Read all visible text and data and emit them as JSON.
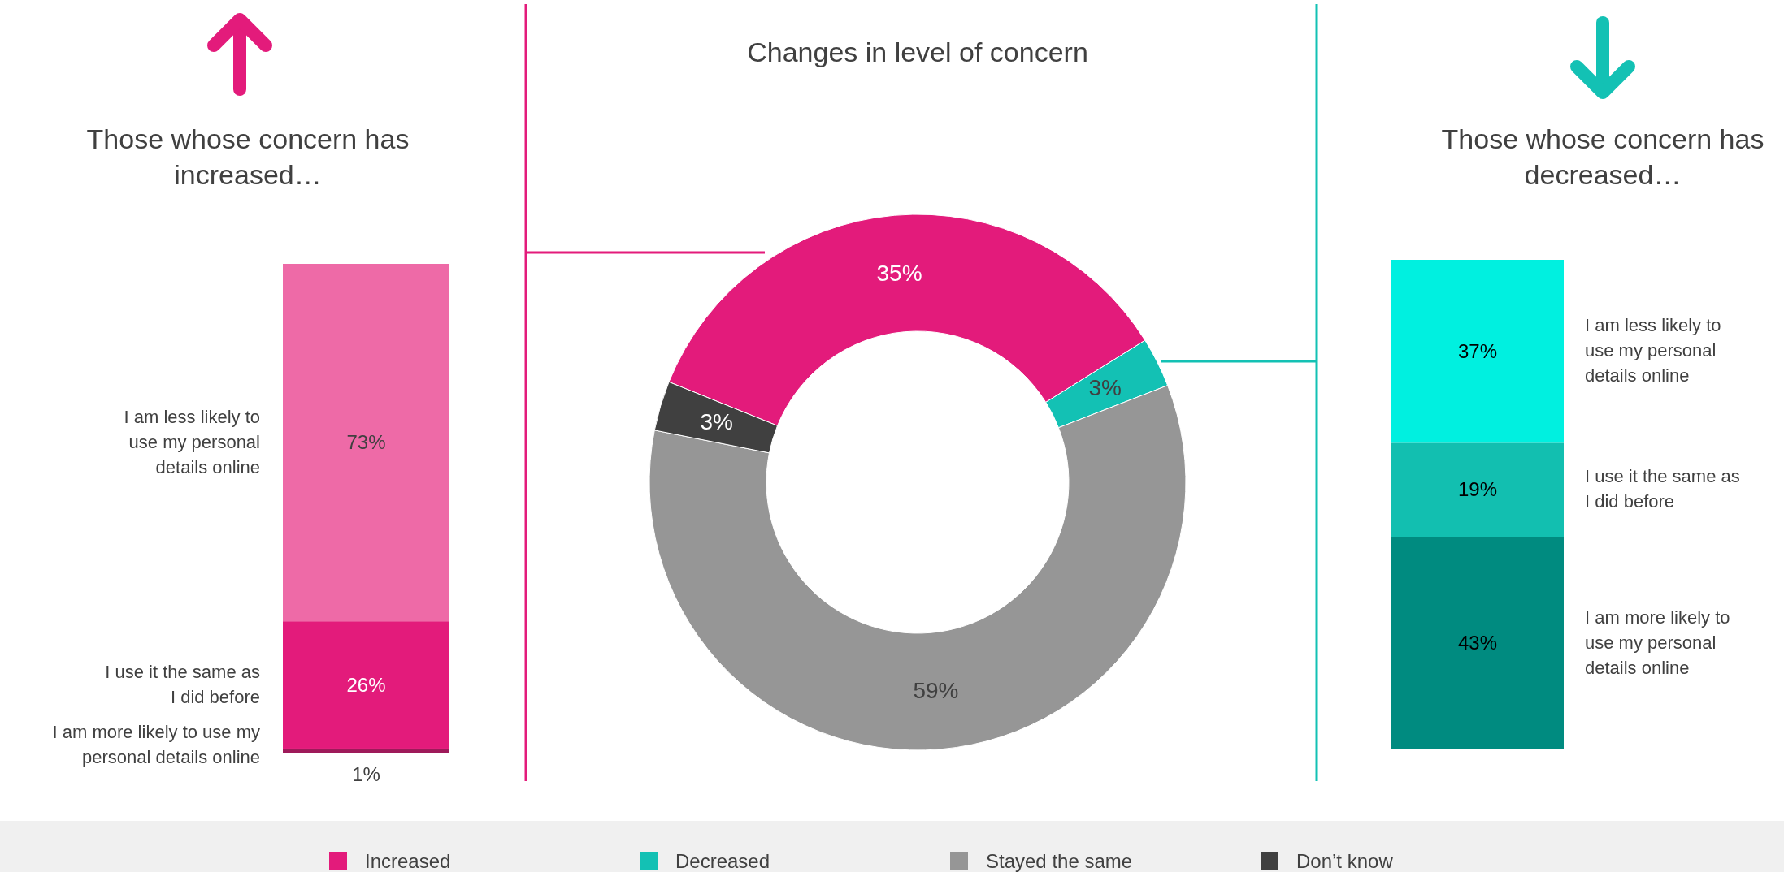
{
  "chart_data": [
    {
      "type": "bar",
      "stacked": true,
      "title": "Those whose concern has increased…",
      "categories": [
        null
      ],
      "tick_labels": false,
      "series": [
        {
          "name": "I am more likely to use my personal details online",
          "color": "#9e1a5a",
          "values": [
            1
          ],
          "value_labels": [
            "1%"
          ]
        },
        {
          "name": "I use it the same as I did before",
          "color": "#e31b7b",
          "values": [
            26
          ],
          "value_labels": [
            "26%"
          ]
        },
        {
          "name": "I am less likely to use my personal details online",
          "color": "#ee6aa7",
          "values": [
            73
          ],
          "value_labels": [
            "73%"
          ]
        }
      ]
    },
    {
      "type": "donut",
      "title": "Changes in level of concern",
      "categories": [
        "Increased",
        "Decreased",
        "Stayed the same",
        "Don’t know"
      ],
      "values": [
        35,
        3,
        59,
        3
      ],
      "colors": [
        "#e31b7b",
        "#13c1b4",
        "#969696",
        "#404040"
      ],
      "value_labels": [
        "35%",
        "3%",
        "59%",
        "3%"
      ],
      "legend": "bottom"
    },
    {
      "type": "bar",
      "stacked": true,
      "title": "Those whose concern has decreased…",
      "categories": [
        null
      ],
      "tick_labels": false,
      "series": [
        {
          "name": "I am more likely to use my personal details online",
          "color": "#008b80",
          "values": [
            43
          ],
          "value_labels": [
            "43%"
          ]
        },
        {
          "name": "I use it the same as I did before",
          "color": "#12bfb0",
          "values": [
            19
          ],
          "value_labels": [
            "19%"
          ]
        },
        {
          "name": "I am less likely to use my personal details online",
          "color": "#00f0e0",
          "values": [
            37
          ],
          "value_labels": [
            "37%"
          ]
        }
      ]
    }
  ]
}
